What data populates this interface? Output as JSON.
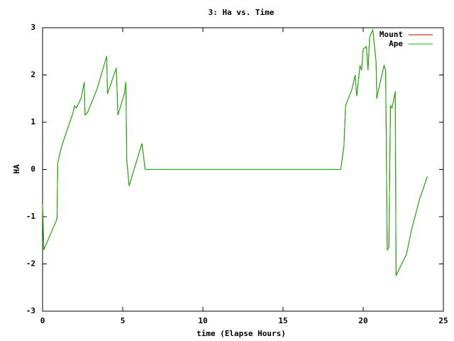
{
  "chart_data": {
    "type": "line",
    "title": "3: Ha vs. Time",
    "x_label": "time (Elapse Hours)",
    "y_label": "HA",
    "x": [
      0,
      0.08,
      0.9,
      0.95,
      1.2,
      1.9,
      2.0,
      2.1,
      2.4,
      2.6,
      2.65,
      2.8,
      3.4,
      4.0,
      4.05,
      4.6,
      4.7,
      5.1,
      5.2,
      5.25,
      5.4,
      6.2,
      6.4,
      18.6,
      18.8,
      18.9,
      19.3,
      19.5,
      19.6,
      19.8,
      19.9,
      20.0,
      20.2,
      20.3,
      20.4,
      20.6,
      20.8,
      20.85,
      20.9,
      21.1,
      21.3,
      21.4,
      21.5,
      21.6,
      21.7,
      21.8,
      22.0,
      22.05,
      22.4,
      22.7,
      23.0,
      23.5,
      24.0
    ],
    "series": [
      {
        "name": "Mount",
        "color": "#cc0000",
        "values": [
          -0.75,
          -1.7,
          -1.05,
          0.15,
          0.5,
          1.2,
          1.35,
          1.3,
          1.5,
          1.85,
          1.15,
          1.2,
          1.7,
          2.4,
          1.6,
          2.15,
          1.15,
          1.6,
          1.85,
          0.2,
          -0.35,
          0.55,
          0,
          0,
          0.5,
          1.35,
          1.7,
          2.0,
          1.55,
          2.2,
          2.1,
          2.55,
          2.6,
          2.1,
          2.8,
          2.95,
          2.3,
          1.5,
          1.6,
          1.9,
          2.2,
          2.1,
          -1.7,
          -1.65,
          1.35,
          1.3,
          1.65,
          -2.25,
          -2.0,
          -1.8,
          -1.3,
          -0.65,
          -0.15
        ]
      },
      {
        "name": "Ape",
        "color": "#00bb00",
        "values": [
          -0.75,
          -1.7,
          -1.05,
          0.15,
          0.5,
          1.2,
          1.35,
          1.3,
          1.5,
          1.85,
          1.15,
          1.2,
          1.7,
          2.4,
          1.6,
          2.15,
          1.15,
          1.6,
          1.85,
          0.2,
          -0.35,
          0.55,
          0,
          0,
          0.5,
          1.35,
          1.7,
          2.0,
          1.55,
          2.2,
          2.1,
          2.55,
          2.6,
          2.1,
          2.8,
          2.95,
          2.3,
          1.5,
          1.6,
          1.9,
          2.2,
          2.1,
          -1.7,
          -1.65,
          1.35,
          1.3,
          1.65,
          -2.25,
          -2.0,
          -1.8,
          -1.3,
          -0.65,
          -0.15
        ]
      }
    ],
    "xlim": [
      0,
      25
    ],
    "xticks": [
      0,
      5,
      10,
      15,
      20,
      25
    ],
    "ylim": [
      -3,
      3
    ],
    "yticks": [
      -3,
      -2,
      -1,
      0,
      1,
      2,
      3
    ],
    "legend": "upper right"
  }
}
